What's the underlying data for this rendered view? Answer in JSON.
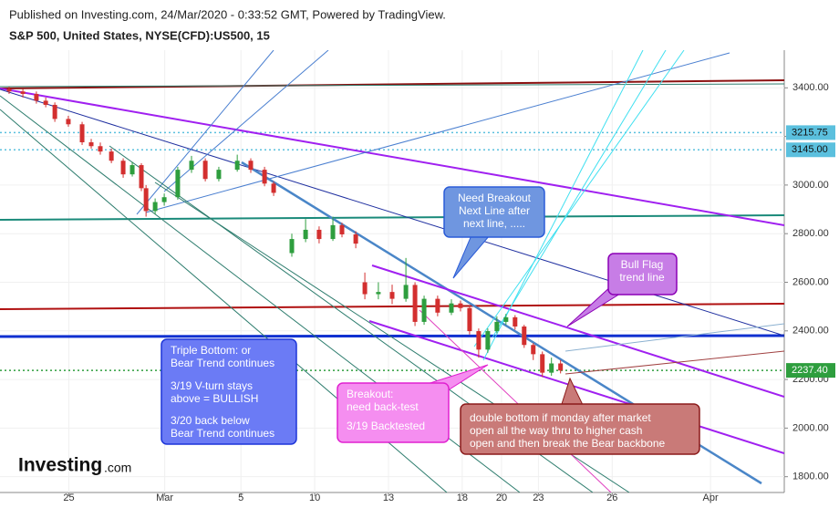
{
  "chart_data": {
    "type": "candlestick",
    "title": "Published on Investing.com, 24/Mar/2020 - 0:33:52 GMT, Powered by TradingView.",
    "subtitle": "S&P 500, United States, NYSE(CFD):US500, 15",
    "logo": "Investing",
    "logo_suffix": ".com",
    "up_color": "#2e9e3e",
    "down_color": "#d32f2f",
    "xlim": [
      -0.3,
      31.6
    ],
    "xticks": [
      {
        "value": 2.5,
        "label": "25"
      },
      {
        "value": 6.4,
        "label": "Mar"
      },
      {
        "value": 9.5,
        "label": "5"
      },
      {
        "value": 12.5,
        "label": "10"
      },
      {
        "value": 15.5,
        "label": "13"
      },
      {
        "value": 18.5,
        "label": "18"
      },
      {
        "value": 20.1,
        "label": "20"
      },
      {
        "value": 21.6,
        "label": "23"
      },
      {
        "value": 24.6,
        "label": "26"
      },
      {
        "value": 28.6,
        "label": "Apr"
      }
    ],
    "ylim": [
      1735,
      3555
    ],
    "yticks": [
      {
        "value": 1800,
        "label": "1800.00"
      },
      {
        "value": 2000,
        "label": "2000.00"
      },
      {
        "value": 2200,
        "label": "2200.00"
      },
      {
        "value": 2400,
        "label": "2400.00"
      },
      {
        "value": 2600,
        "label": "2600.00"
      },
      {
        "value": 2800,
        "label": "2800.00"
      },
      {
        "value": 3000,
        "label": "3000.00"
      },
      {
        "value": 3200,
        "label": "3200.00"
      },
      {
        "value": 3400,
        "label": "3400.00"
      }
    ],
    "price_lines": [
      {
        "value": 3215.75,
        "label": "3215.75",
        "color": "#5bc0de"
      },
      {
        "value": 3145,
        "label": "3145.00",
        "color": "#5bc0de"
      },
      {
        "value": 2237.4,
        "label": "2237.40",
        "color": "#2e9e3e"
      }
    ],
    "candles": {
      "x": [
        0.07,
        0.63,
        1.18,
        1.56,
        1.93,
        2.48,
        3.04,
        3.41,
        3.78,
        4.23,
        4.71,
        5.08,
        5.45,
        5.64,
        6.01,
        6.38,
        6.93,
        7.49,
        8.05,
        8.6,
        9.35,
        9.9,
        10.46,
        10.83,
        11.57,
        12.13,
        12.68,
        13.24,
        13.61,
        14.17,
        14.54,
        15.09,
        15.65,
        16.21,
        16.58,
        16.95,
        17.5,
        18.06,
        18.43,
        18.8,
        19.17,
        19.54,
        19.91,
        20.28,
        20.65,
        21.02,
        21.39,
        21.76,
        22.13,
        22.5
      ],
      "open": [
        3395,
        3385,
        3375,
        3347,
        3330,
        3272,
        3250,
        3176,
        3160,
        3138,
        3100,
        3044,
        3082,
        2987,
        2893,
        2930,
        2950,
        3063,
        3100,
        3025,
        3063,
        3100,
        3063,
        3006,
        2720,
        2778,
        2816,
        2778,
        2835,
        2797,
        2600,
        2551,
        2560,
        2532,
        2589,
        2437,
        2532,
        2475,
        2513,
        2494,
        2399,
        2323,
        2399,
        2437,
        2456,
        2418,
        2342,
        2304,
        2228,
        2266
      ],
      "high": [
        3405,
        3395,
        3385,
        3360,
        3340,
        3285,
        3260,
        3190,
        3175,
        3150,
        3110,
        3095,
        3090,
        3000,
        2945,
        2965,
        3075,
        3120,
        3110,
        3075,
        3125,
        3110,
        3075,
        3015,
        2800,
        2860,
        2830,
        2870,
        2845,
        2810,
        2640,
        2600,
        2590,
        2700,
        2600,
        2545,
        2545,
        2530,
        2525,
        2505,
        2410,
        2410,
        2460,
        2470,
        2465,
        2425,
        2350,
        2315,
        2290,
        2280
      ],
      "low": [
        3375,
        3360,
        3335,
        3320,
        3260,
        3240,
        3165,
        3150,
        3125,
        3090,
        3030,
        3035,
        2975,
        2870,
        2880,
        2915,
        2940,
        3050,
        3015,
        3015,
        3055,
        3050,
        2995,
        2955,
        2705,
        2765,
        2760,
        2770,
        2785,
        2740,
        2530,
        2530,
        2510,
        2520,
        2420,
        2425,
        2460,
        2465,
        2480,
        2385,
        2290,
        2310,
        2390,
        2425,
        2405,
        2330,
        2280,
        2210,
        2215,
        2225
      ],
      "close": [
        3385,
        3375,
        3347,
        3330,
        3272,
        3250,
        3176,
        3160,
        3138,
        3100,
        3044,
        3082,
        2987,
        2893,
        2930,
        2950,
        3063,
        3100,
        3025,
        3063,
        3100,
        3063,
        3006,
        2968,
        2778,
        2816,
        2778,
        2835,
        2797,
        2759,
        2551,
        2560,
        2532,
        2589,
        2437,
        2532,
        2475,
        2513,
        2494,
        2399,
        2323,
        2399,
        2437,
        2456,
        2418,
        2342,
        2304,
        2228,
        2266,
        2237
      ]
    },
    "annotations": [
      {
        "lines": [
          "Need Breakout",
          "Next Line after",
          "next line, ....."
        ]
      },
      {
        "lines": [
          "Bull Flag",
          "trend line"
        ]
      },
      {
        "lines": [
          "Triple Bottom: or",
          "Bear Trend continues",
          "3/19 V-turn stays",
          "above = BULLISH",
          "3/20 back below",
          "Bear Trend continues"
        ]
      },
      {
        "lines": [
          "Breakout:",
          "need back-test",
          "3/19 Backtested"
        ]
      },
      {
        "lines": [
          "double bottom if monday after market",
          "open all the way thru to higher cash",
          "open and then break the Bear backbone"
        ]
      }
    ]
  }
}
